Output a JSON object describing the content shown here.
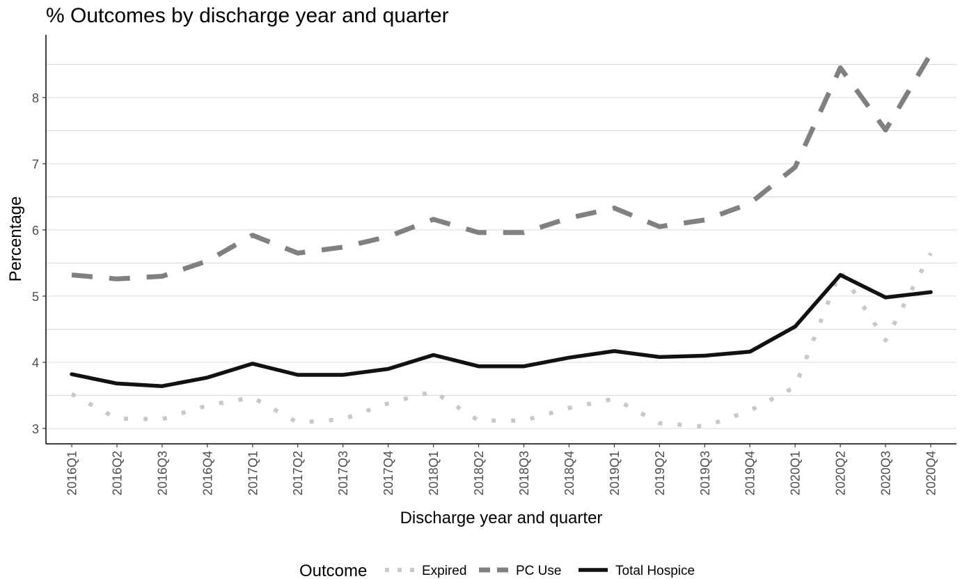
{
  "chart_data": {
    "type": "line",
    "title": "% Outcomes by discharge year and quarter",
    "xlabel": "Discharge year and quarter",
    "ylabel": "Percentage",
    "ylim": [
      2.75,
      8.9
    ],
    "yticks": [
      3,
      4,
      5,
      6,
      7,
      8
    ],
    "grid": "horizontal",
    "legend": {
      "title": "Outcome",
      "placement": "bottom"
    },
    "categories": [
      "2016Q1",
      "2016Q2",
      "2016Q3",
      "2016Q4",
      "2017Q1",
      "2017Q2",
      "2017Q3",
      "2017Q4",
      "2018Q1",
      "2018Q2",
      "2018Q3",
      "2018Q4",
      "2019Q1",
      "2019Q2",
      "2019Q3",
      "2019Q4",
      "2020Q1",
      "2020Q2",
      "2020Q3",
      "2020Q4"
    ],
    "series": [
      {
        "name": "Expired",
        "style": "dotted",
        "color": "#c8c8c8",
        "values": [
          3.52,
          3.15,
          3.14,
          3.35,
          3.47,
          3.09,
          3.14,
          3.38,
          3.56,
          3.12,
          3.12,
          3.31,
          3.45,
          3.08,
          3.03,
          3.27,
          3.63,
          5.38,
          4.33,
          5.65
        ]
      },
      {
        "name": "PC Use",
        "style": "dashed",
        "color": "#808080",
        "values": [
          5.32,
          5.26,
          5.3,
          5.53,
          5.92,
          5.65,
          5.74,
          5.9,
          6.16,
          5.96,
          5.96,
          6.18,
          6.33,
          6.05,
          6.15,
          6.4,
          6.95,
          8.45,
          7.51,
          8.66
        ]
      },
      {
        "name": "Total Hospice",
        "style": "solid",
        "color": "#111111",
        "values": [
          3.82,
          3.68,
          3.64,
          3.77,
          3.98,
          3.81,
          3.81,
          3.9,
          4.11,
          3.94,
          3.94,
          4.07,
          4.17,
          4.08,
          4.1,
          4.16,
          4.54,
          5.32,
          4.98,
          5.06
        ]
      }
    ]
  }
}
